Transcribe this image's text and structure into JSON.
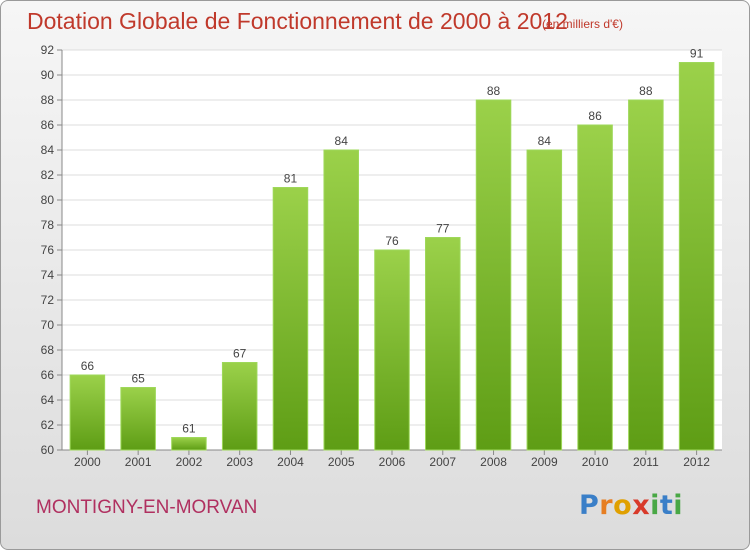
{
  "title": "Dotation Globale de Fonctionnement de 2000 à 2012",
  "subtitle": "(en milliers d'€)",
  "commune": "MONTIGNY-EN-MORVAN",
  "logo": {
    "text": "Proxiti",
    "colors": [
      "#3a7fc8",
      "#e67e22",
      "#e0a000",
      "#d83a2a",
      "#49a845",
      "#3a7fc8"
    ]
  },
  "chart_data": {
    "type": "bar",
    "title": "Dotation Globale de Fonctionnement de 2000 à 2012",
    "subtitle": "(en milliers d'€)",
    "xlabel": "",
    "ylabel": "",
    "categories": [
      "2000",
      "2001",
      "2002",
      "2003",
      "2004",
      "2005",
      "2006",
      "2007",
      "2008",
      "2009",
      "2010",
      "2011",
      "2012"
    ],
    "values": [
      66,
      65,
      61,
      67,
      81,
      84,
      76,
      77,
      88,
      84,
      86,
      88,
      91
    ],
    "ylim": [
      60,
      92
    ],
    "yticks": [
      60,
      62,
      64,
      66,
      68,
      70,
      72,
      74,
      76,
      78,
      80,
      82,
      84,
      86,
      88,
      90,
      92
    ],
    "grid": true,
    "bar_color": "#7cc02a",
    "bar_color_dark": "#5a9a14",
    "data_labels": true
  }
}
